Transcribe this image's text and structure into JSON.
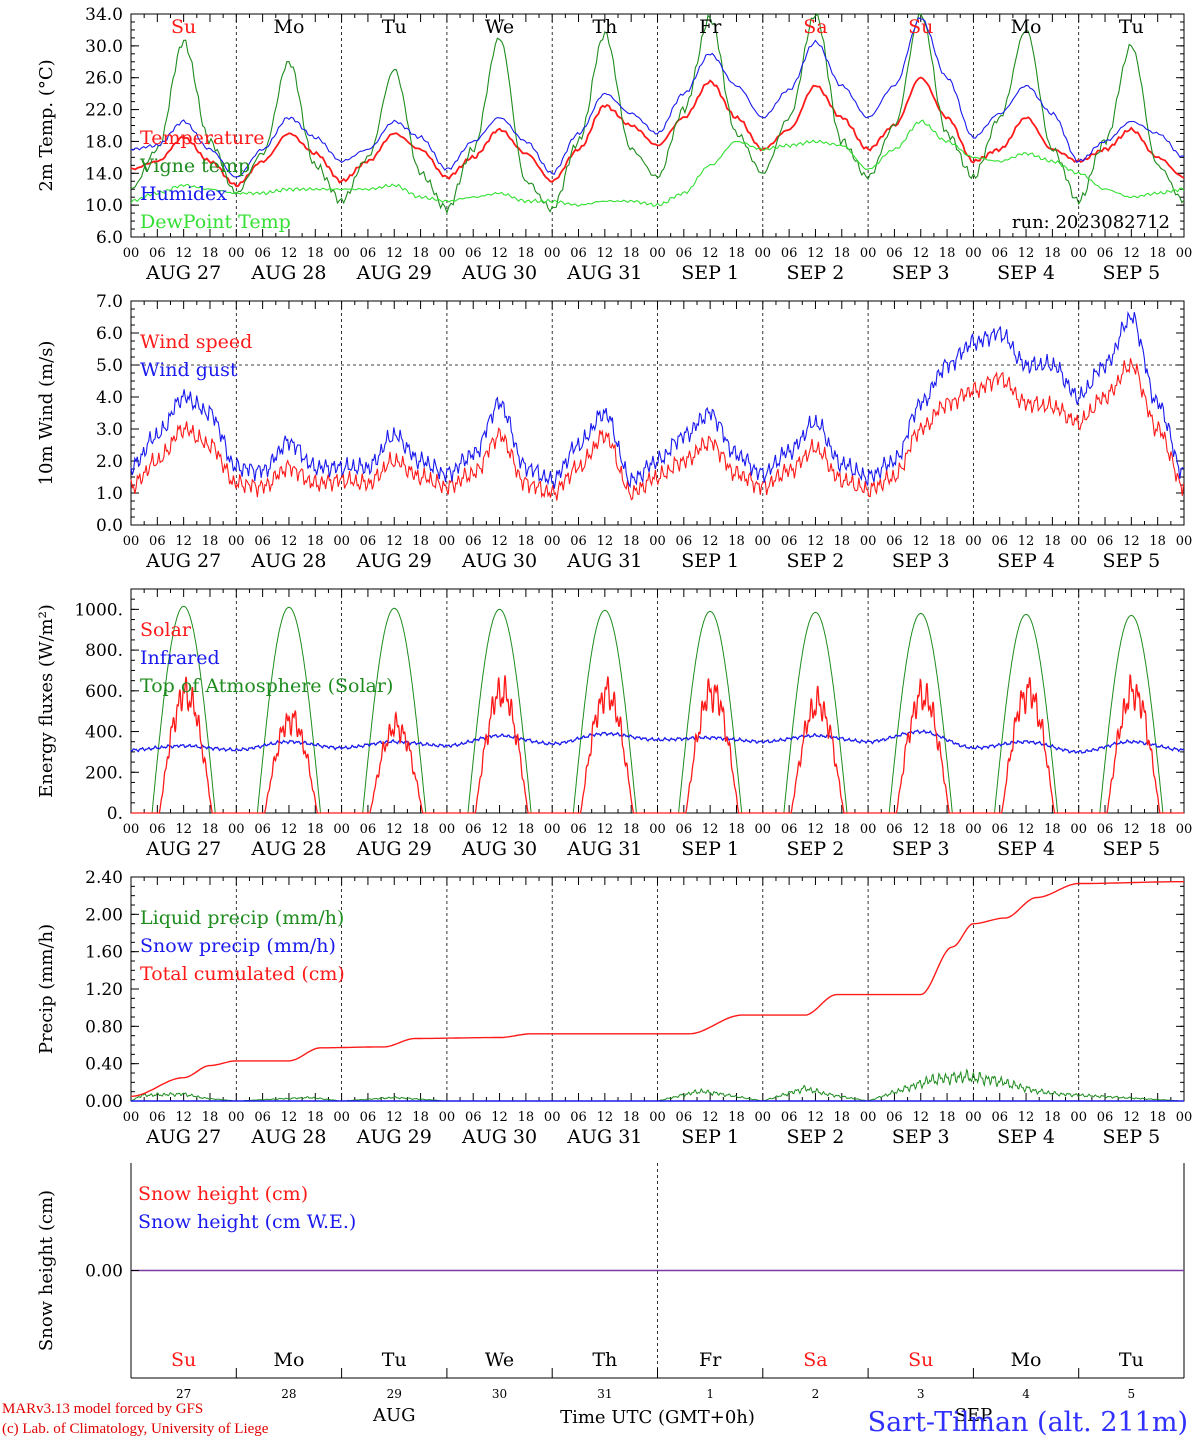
{
  "run_label": "run: 2023082712",
  "credits": [
    "MARv3.13 model forced by GFS",
    "(c) Lab. of Climatology, University of Liege"
  ],
  "station": "Sart-Tilman (alt. 211m)",
  "colors": {
    "red": "#ff1a1a",
    "green": "#1e8c1e",
    "blue": "#1a1aee",
    "lightgreen": "#33e033",
    "purple": "#7a3ca0",
    "weekend": "#ff1a1a",
    "weekday": "#000000"
  },
  "weekdays": [
    {
      "label": "Su",
      "weekend": true
    },
    {
      "label": "Mo",
      "weekend": false
    },
    {
      "label": "Tu",
      "weekend": false
    },
    {
      "label": "We",
      "weekend": false
    },
    {
      "label": "Th",
      "weekend": false
    },
    {
      "label": "Fr",
      "weekend": false
    },
    {
      "label": "Sa",
      "weekend": true
    },
    {
      "label": "Su",
      "weekend": true
    },
    {
      "label": "Mo",
      "weekend": false
    },
    {
      "label": "Tu",
      "weekend": false
    }
  ],
  "date_labels": [
    "AUG 27",
    "AUG 28",
    "AUG 29",
    "AUG 30",
    "AUG 31",
    "SEP  1",
    "SEP  2",
    "SEP  3",
    "SEP  4",
    "SEP  5"
  ],
  "hour_labels": [
    "00",
    "06",
    "12",
    "18"
  ],
  "hour_end_label": "00",
  "bottom_axis": {
    "day_numbers": [
      "27",
      "28",
      "29",
      "30",
      "31",
      "1",
      "2",
      "3",
      "4",
      "5"
    ],
    "month_labels": [
      {
        "label": "AUG",
        "day": 2.5
      },
      {
        "label": "SEP",
        "day": 8
      }
    ],
    "xlabel": "Time UTC (GMT+0h)"
  },
  "chart_data": [
    {
      "type": "line",
      "ylabel": "2m Temp. (°C)",
      "ylim": [
        6,
        34
      ],
      "yticks": [
        6,
        10,
        14,
        18,
        22,
        26,
        30,
        34
      ],
      "ytick_labels": [
        "6.0",
        "10.0",
        "14.0",
        "18.0",
        "22.0",
        "26.0",
        "30.0",
        "34.0"
      ],
      "x_unit": "days since 2023-08-27 00 UTC",
      "xlim": [
        0,
        10
      ],
      "grid": "vertical dashed lines at 00 UTC each day",
      "legend": "left",
      "series": [
        {
          "name": "Temperature",
          "color": "#ff1a1a",
          "x": [
            0,
            0.25,
            0.5,
            0.75,
            1,
            1.25,
            1.5,
            1.75,
            2,
            2.25,
            2.5,
            2.75,
            3,
            3.25,
            3.5,
            3.75,
            4,
            4.25,
            4.5,
            4.75,
            5,
            5.25,
            5.5,
            5.75,
            6,
            6.25,
            6.5,
            6.75,
            7,
            7.25,
            7.5,
            7.75,
            8,
            8.25,
            8.5,
            8.75,
            9,
            9.25,
            9.5,
            9.75,
            10
          ],
          "values": [
            14.5,
            15.5,
            18.5,
            15.5,
            12.5,
            15.5,
            19.0,
            16.5,
            13.0,
            15.5,
            19.0,
            17.0,
            13.5,
            16.0,
            19.5,
            16.5,
            13.0,
            17.0,
            22.5,
            20.0,
            17.5,
            21.0,
            25.5,
            21.0,
            17.0,
            19.5,
            25.0,
            21.0,
            17.0,
            20.0,
            26.0,
            21.0,
            15.5,
            17.0,
            21.0,
            17.0,
            15.5,
            17.0,
            19.5,
            16.0,
            13.5
          ]
        },
        {
          "name": "Vigne temp",
          "color": "#1e8c1e",
          "x": [
            0,
            0.25,
            0.5,
            0.75,
            1,
            1.25,
            1.5,
            1.75,
            2,
            2.25,
            2.5,
            2.75,
            3,
            3.25,
            3.5,
            3.75,
            4,
            4.25,
            4.5,
            4.75,
            5,
            5.25,
            5.5,
            5.75,
            6,
            6.25,
            6.5,
            6.75,
            7,
            7.25,
            7.5,
            7.75,
            8,
            8.25,
            8.5,
            8.75,
            9,
            9.25,
            9.5,
            9.75,
            10
          ],
          "values": [
            12.0,
            17.0,
            30.5,
            18.0,
            11.5,
            16.5,
            28.0,
            15.0,
            10.5,
            16.0,
            27.0,
            14.0,
            9.5,
            17.0,
            31.0,
            13.0,
            9.5,
            18.0,
            31.5,
            17.0,
            13.5,
            22.0,
            33.5,
            19.0,
            14.0,
            21.0,
            34.0,
            18.0,
            13.5,
            20.0,
            34.0,
            19.0,
            13.5,
            21.0,
            32.0,
            17.0,
            10.5,
            18.0,
            30.0,
            15.0,
            10.5
          ]
        },
        {
          "name": "Humidex",
          "color": "#1a1aee",
          "x": [
            0,
            0.25,
            0.5,
            0.75,
            1,
            1.25,
            1.5,
            1.75,
            2,
            2.25,
            2.5,
            2.75,
            3,
            3.25,
            3.5,
            3.75,
            4,
            4.25,
            4.5,
            4.75,
            5,
            5.25,
            5.5,
            5.75,
            6,
            6.25,
            6.5,
            6.75,
            7,
            7.25,
            7.5,
            7.75,
            8,
            8.25,
            8.5,
            8.75,
            9,
            9.25,
            9.5,
            9.75,
            10
          ],
          "values": [
            17.0,
            17.5,
            20.5,
            17.0,
            13.5,
            17.0,
            21.0,
            18.5,
            15.5,
            17.0,
            20.5,
            18.5,
            14.5,
            18.0,
            21.0,
            18.0,
            14.0,
            19.0,
            24.0,
            21.5,
            19.0,
            24.0,
            29.0,
            25.0,
            21.0,
            24.5,
            30.5,
            25.0,
            21.0,
            25.0,
            33.5,
            26.0,
            18.5,
            21.5,
            25.0,
            21.5,
            15.5,
            18.0,
            20.5,
            19.0,
            16.0
          ]
        },
        {
          "name": "DewPoint Temp",
          "color": "#33e033",
          "x": [
            0,
            0.25,
            0.5,
            0.75,
            1,
            1.25,
            1.5,
            1.75,
            2,
            2.25,
            2.5,
            2.75,
            3,
            3.25,
            3.5,
            3.75,
            4,
            4.25,
            4.5,
            4.75,
            5,
            5.25,
            5.5,
            5.75,
            6,
            6.25,
            6.5,
            6.75,
            7,
            7.25,
            7.5,
            7.75,
            8,
            8.25,
            8.5,
            8.75,
            9,
            9.25,
            9.5,
            9.75,
            10
          ],
          "values": [
            10.5,
            11.5,
            12.5,
            12.0,
            11.5,
            11.5,
            12.0,
            12.0,
            12.0,
            12.0,
            12.5,
            11.0,
            10.5,
            11.0,
            11.5,
            10.5,
            10.5,
            10.0,
            10.5,
            10.5,
            10.0,
            11.5,
            15.0,
            18.0,
            17.0,
            17.5,
            18.0,
            17.5,
            14.5,
            17.0,
            20.5,
            18.0,
            16.0,
            15.5,
            16.5,
            15.5,
            14.0,
            12.0,
            11.0,
            11.5,
            12.0
          ]
        }
      ]
    },
    {
      "type": "line",
      "ylabel": "10m Wind (m/s)",
      "ylim": [
        0,
        7
      ],
      "yticks": [
        0,
        1,
        2,
        3,
        4,
        5,
        6,
        7
      ],
      "ytick_labels": [
        "0.0",
        "1.0",
        "2.0",
        "3.0",
        "4.0",
        "5.0",
        "6.0",
        "7.0"
      ],
      "reference_line": 5,
      "x_unit": "days since 2023-08-27 00 UTC",
      "xlim": [
        0,
        10
      ],
      "legend": "left",
      "series": [
        {
          "name": "Wind speed",
          "color": "#ff1a1a",
          "x": [
            0,
            0.25,
            0.5,
            0.75,
            1,
            1.25,
            1.5,
            1.75,
            2,
            2.25,
            2.5,
            2.75,
            3,
            3.25,
            3.5,
            3.75,
            4,
            4.25,
            4.5,
            4.75,
            5,
            5.25,
            5.5,
            5.75,
            6,
            6.25,
            6.5,
            6.75,
            7,
            7.25,
            7.5,
            7.75,
            8,
            8.25,
            8.5,
            8.75,
            9,
            9.25,
            9.5,
            9.75,
            10
          ],
          "values": [
            1.2,
            2.0,
            3.0,
            2.5,
            1.3,
            1.2,
            1.8,
            1.3,
            1.4,
            1.3,
            2.0,
            1.5,
            1.2,
            1.6,
            2.8,
            1.3,
            1.0,
            1.8,
            2.8,
            1.0,
            1.5,
            2.0,
            2.6,
            1.6,
            1.2,
            1.7,
            2.4,
            1.4,
            1.1,
            1.5,
            3.0,
            3.8,
            4.2,
            4.6,
            3.8,
            3.7,
            3.2,
            4.0,
            5.0,
            3.0,
            1.2
          ]
        },
        {
          "name": "Wind gust",
          "color": "#1a1aee",
          "x": [
            0,
            0.25,
            0.5,
            0.75,
            1,
            1.25,
            1.5,
            1.75,
            2,
            2.25,
            2.5,
            2.75,
            3,
            3.25,
            3.5,
            3.75,
            4,
            4.25,
            4.5,
            4.75,
            5,
            5.25,
            5.5,
            5.75,
            6,
            6.25,
            6.5,
            6.75,
            7,
            7.25,
            7.5,
            7.75,
            8,
            8.25,
            8.5,
            8.75,
            9,
            9.25,
            9.5,
            9.75,
            10
          ],
          "values": [
            1.8,
            2.8,
            4.0,
            3.5,
            1.8,
            1.7,
            2.6,
            1.8,
            1.8,
            1.8,
            2.8,
            2.0,
            1.6,
            2.2,
            3.8,
            1.8,
            1.4,
            2.5,
            3.5,
            1.4,
            2.0,
            2.8,
            3.5,
            2.2,
            1.6,
            2.3,
            3.2,
            1.9,
            1.5,
            2.0,
            3.8,
            5.0,
            5.7,
            6.0,
            5.0,
            5.0,
            4.0,
            5.0,
            6.5,
            3.8,
            1.6
          ]
        }
      ]
    },
    {
      "type": "line",
      "ylabel": "Energy fluxes (W/m²)",
      "ylim": [
        0,
        1100
      ],
      "yticks": [
        0,
        200,
        400,
        600,
        800,
        1000
      ],
      "ytick_labels": [
        "0.",
        "200.",
        "400.",
        "600.",
        "800.",
        "1000."
      ],
      "x_unit": "days since 2023-08-27 00 UTC",
      "xlim": [
        0,
        10
      ],
      "legend": "left",
      "series": [
        {
          "name": "Solar",
          "color": "#ff1a1a",
          "daily_peaks": [
            690,
            540,
            500,
            700,
            690,
            700,
            630,
            680,
            700,
            700
          ]
        },
        {
          "name": "Infrared",
          "color": "#1a1aee",
          "x": [
            0,
            0.5,
            1,
            1.5,
            2,
            2.5,
            3,
            3.5,
            4,
            4.5,
            5,
            5.5,
            6,
            6.5,
            7,
            7.5,
            8,
            8.5,
            9,
            9.5,
            10
          ],
          "values": [
            310,
            330,
            310,
            350,
            320,
            350,
            330,
            380,
            340,
            390,
            360,
            370,
            350,
            380,
            350,
            400,
            320,
            350,
            300,
            350,
            310
          ]
        },
        {
          "name": "Top of Atmosphere (Solar)",
          "color": "#1e8c1e",
          "daily_peaks": [
            1015,
            1010,
            1005,
            1000,
            995,
            990,
            985,
            980,
            975,
            970
          ]
        }
      ]
    },
    {
      "type": "line",
      "ylabel": "Precip (mm/h)",
      "ylim": [
        0,
        2.4
      ],
      "yticks": [
        0,
        0.4,
        0.8,
        1.2,
        1.6,
        2.0,
        2.4
      ],
      "ytick_labels": [
        "0.00",
        "0.40",
        "0.80",
        "1.20",
        "1.60",
        "2.00",
        "2.40"
      ],
      "x_unit": "days since 2023-08-27 00 UTC",
      "xlim": [
        0,
        10
      ],
      "legend": "left",
      "series": [
        {
          "name": "Liquid precip (mm/h)",
          "color": "#1e8c1e",
          "x": [
            0,
            0.1,
            0.5,
            0.7,
            1.0,
            1.7,
            2.0,
            2.5,
            3.0,
            5.0,
            5.4,
            5.6,
            6.0,
            6.4,
            6.6,
            7.0,
            7.6,
            7.9,
            8.2,
            8.6,
            8.8,
            10
          ],
          "values": [
            0,
            0.08,
            0.1,
            0.04,
            0,
            0.05,
            0,
            0.05,
            0,
            0,
            0.14,
            0.1,
            0,
            0.18,
            0.1,
            0,
            0.3,
            0.35,
            0.3,
            0.14,
            0.1,
            0
          ]
        },
        {
          "name": "Snow precip (mm/h)",
          "color": "#1a1aee",
          "x": [
            0,
            10
          ],
          "values": [
            0,
            0
          ]
        },
        {
          "name": "Total cumulated (cm)",
          "color": "#ff1a1a",
          "x": [
            0,
            0.5,
            0.75,
            1.0,
            1.5,
            1.8,
            2.4,
            2.7,
            3.5,
            3.8,
            5.3,
            5.8,
            6.4,
            6.7,
            7.5,
            7.8,
            8.0,
            8.3,
            8.6,
            9.0,
            10
          ],
          "values": [
            0.05,
            0.25,
            0.38,
            0.43,
            0.43,
            0.57,
            0.58,
            0.67,
            0.68,
            0.72,
            0.72,
            0.92,
            0.92,
            1.14,
            1.14,
            1.65,
            1.9,
            1.96,
            2.18,
            2.33,
            2.35
          ]
        }
      ]
    },
    {
      "type": "line",
      "ylabel": "Snow height (cm)",
      "ylim": [
        -1,
        1
      ],
      "yticks": [
        0
      ],
      "ytick_labels": [
        "0.00"
      ],
      "x_unit": "days since 2023-08-27 00 UTC",
      "xlim": [
        0,
        10
      ],
      "legend": "left",
      "series": [
        {
          "name": "Snow height (cm)",
          "color": "#ff1a1a",
          "x": [
            0,
            10
          ],
          "values": [
            0,
            0
          ]
        },
        {
          "name": "Snow height (cm W.E.)",
          "color": "#1a1aee",
          "x": [
            0,
            10
          ],
          "values": [
            0,
            0
          ]
        }
      ]
    }
  ]
}
